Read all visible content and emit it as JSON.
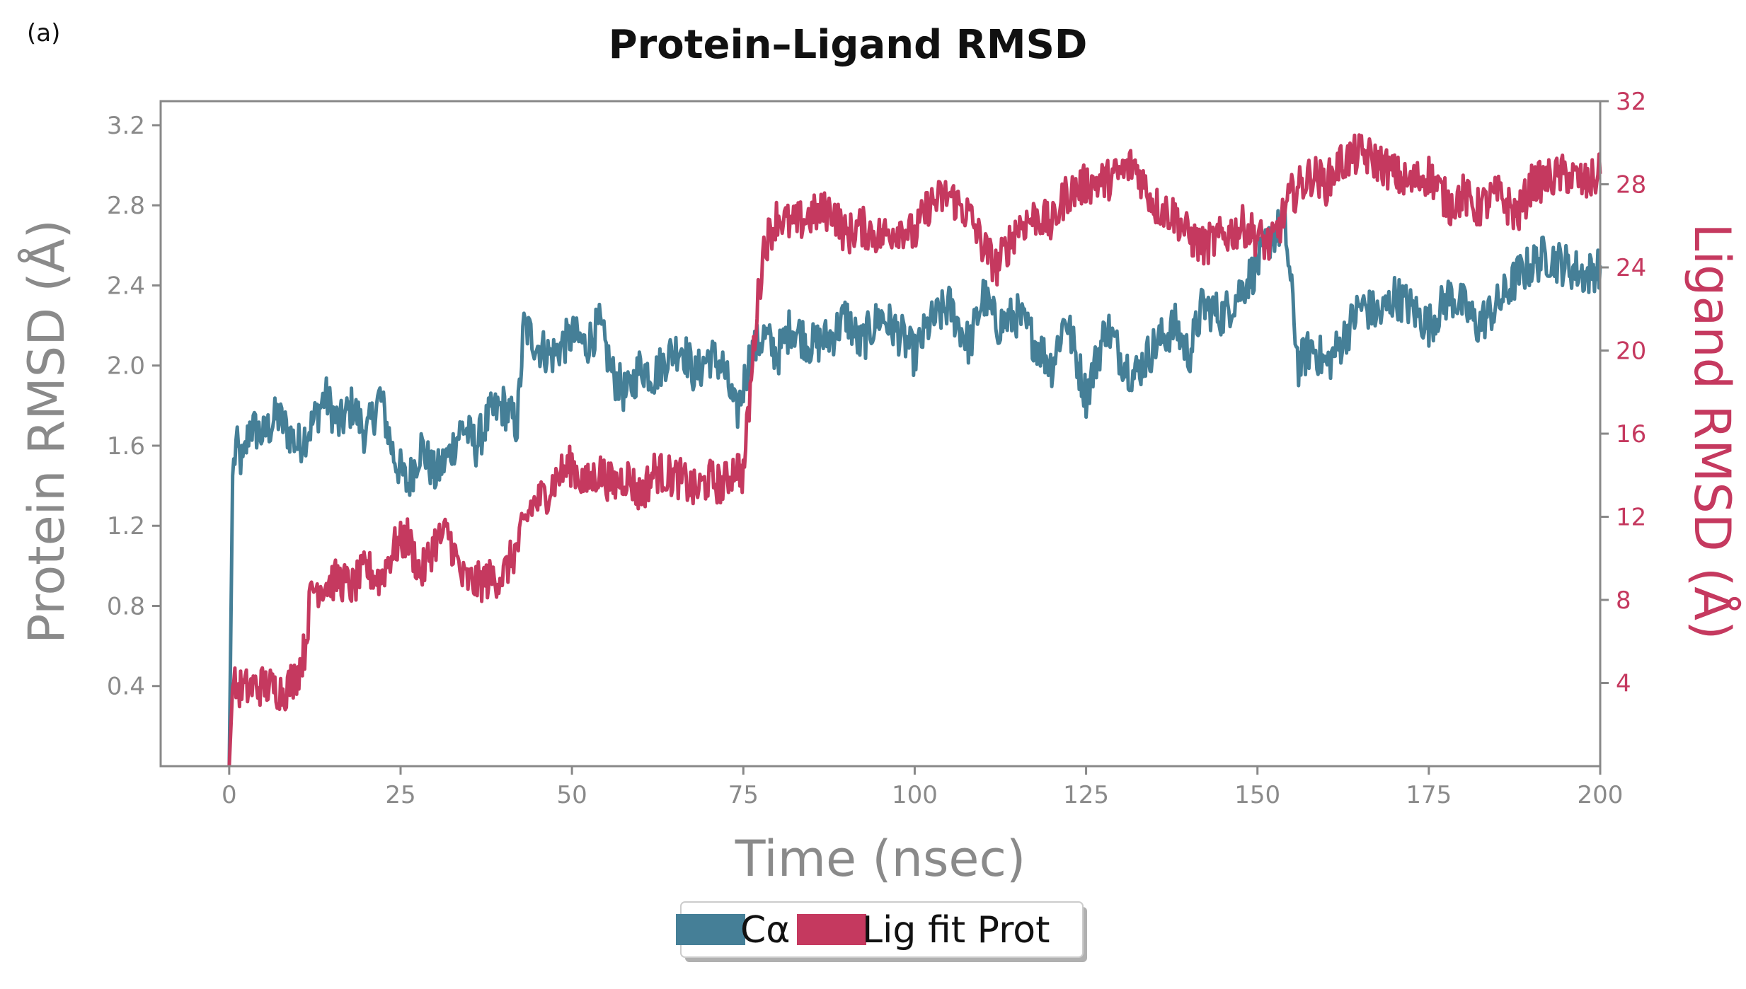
{
  "panel_label": "(a)",
  "chart_data": {
    "type": "line",
    "title": "Protein–Ligand RMSD",
    "xlabel": "Time (nsec)",
    "ylabel_left": "Protein RMSD (Å)",
    "ylabel_right": "Ligand RMSD (Å)",
    "xlim": [
      -10,
      200
    ],
    "ylim_left": [
      0.0,
      3.32
    ],
    "ylim_right": [
      0.0,
      32.0
    ],
    "x_ticks": [
      0,
      25,
      50,
      75,
      100,
      125,
      150,
      175,
      200
    ],
    "y_ticks_left": [
      "3.2",
      "2.8",
      "2.4",
      "2.0",
      "1.6",
      "1.2",
      "0.8",
      "0.4"
    ],
    "y_tick_values_left": [
      3.2,
      2.8,
      2.4,
      2.0,
      1.6,
      1.2,
      0.8,
      0.4
    ],
    "y_ticks_right": [
      "32",
      "28",
      "24",
      "20",
      "16",
      "12",
      "8",
      "4"
    ],
    "y_tick_values_right": [
      32,
      28,
      24,
      20,
      16,
      12,
      8,
      4
    ],
    "grid": false,
    "legend_placement": "bottom-center",
    "series": [
      {
        "name": "Cα",
        "axis": "left",
        "color": "#457f97",
        "x": [
          0,
          0.5,
          1,
          2,
          3,
          5,
          7,
          10,
          12,
          14,
          16,
          18,
          20,
          22,
          24,
          26,
          28,
          30,
          32,
          34,
          36,
          38,
          40,
          42,
          43,
          45,
          47,
          50,
          52,
          54,
          56,
          58,
          60,
          62,
          64,
          66,
          68,
          70,
          72,
          74,
          76,
          78,
          80,
          82,
          85,
          88,
          90,
          92,
          95,
          98,
          100,
          102,
          105,
          108,
          110,
          112,
          115,
          118,
          120,
          122,
          125,
          128,
          130,
          132,
          135,
          138,
          140,
          142,
          145,
          148,
          150,
          152,
          154,
          156,
          158,
          160,
          162,
          165,
          168,
          170,
          172,
          175,
          178,
          180,
          182,
          185,
          188,
          190,
          192,
          195,
          198,
          200
        ],
        "values": [
          0.0,
          1.45,
          1.6,
          1.5,
          1.7,
          1.65,
          1.75,
          1.6,
          1.7,
          1.85,
          1.7,
          1.8,
          1.65,
          1.85,
          1.55,
          1.4,
          1.6,
          1.45,
          1.55,
          1.7,
          1.6,
          1.75,
          1.8,
          1.7,
          2.2,
          2.1,
          2.05,
          2.15,
          2.1,
          2.2,
          1.95,
          1.85,
          2.0,
          1.95,
          2.05,
          2.1,
          1.95,
          2.05,
          2.0,
          1.75,
          2.05,
          2.15,
          2.05,
          2.2,
          2.1,
          2.15,
          2.25,
          2.1,
          2.25,
          2.15,
          2.05,
          2.2,
          2.3,
          2.1,
          2.35,
          2.2,
          2.25,
          2.1,
          2.0,
          2.25,
          1.85,
          2.2,
          2.05,
          1.95,
          2.1,
          2.2,
          2.05,
          2.3,
          2.25,
          2.4,
          2.5,
          2.65,
          2.7,
          2.0,
          2.1,
          2.0,
          2.1,
          2.3,
          2.25,
          2.35,
          2.3,
          2.2,
          2.35,
          2.3,
          2.2,
          2.3,
          2.45,
          2.5,
          2.55,
          2.5,
          2.45,
          2.5
        ]
      },
      {
        "name": "Lig fit Prot",
        "axis": "right",
        "color": "#c5395f",
        "x": [
          0,
          0.5,
          2,
          5,
          8,
          10,
          11,
          12,
          14,
          16,
          18,
          20,
          22,
          24,
          26,
          28,
          30,
          32,
          34,
          36,
          38,
          40,
          42,
          44,
          46,
          48,
          50,
          52,
          54,
          56,
          58,
          60,
          62,
          64,
          66,
          68,
          70,
          72,
          74,
          75,
          76,
          77,
          78,
          80,
          82,
          85,
          88,
          90,
          92,
          95,
          98,
          100,
          102,
          105,
          108,
          110,
          112,
          115,
          118,
          120,
          122,
          125,
          128,
          130,
          132,
          135,
          138,
          140,
          142,
          145,
          148,
          150,
          152,
          155,
          158,
          160,
          162,
          165,
          168,
          170,
          172,
          175,
          178,
          180,
          182,
          185,
          188,
          190,
          192,
          195,
          198,
          200
        ],
        "values": [
          0.0,
          3.8,
          3.7,
          3.9,
          3.6,
          4.5,
          5.6,
          8.5,
          8.8,
          9.0,
          8.6,
          9.5,
          9.0,
          10.5,
          11.0,
          9.2,
          10.8,
          11.2,
          9.0,
          8.8,
          9.0,
          9.2,
          10.5,
          12.5,
          13.0,
          14.0,
          14.5,
          13.5,
          14.2,
          13.5,
          14.0,
          13.0,
          14.2,
          14.0,
          13.8,
          13.2,
          13.8,
          13.5,
          14.5,
          14.0,
          18.0,
          22.0,
          25.0,
          26.5,
          26.0,
          26.5,
          26.8,
          25.5,
          26.0,
          25.5,
          26.0,
          25.5,
          27.0,
          27.5,
          26.5,
          25.0,
          24.0,
          26.0,
          26.5,
          26.0,
          27.5,
          28.0,
          28.2,
          28.5,
          29.0,
          27.0,
          26.5,
          25.5,
          25.0,
          25.5,
          26.0,
          25.5,
          25.0,
          27.5,
          28.5,
          28.0,
          29.0,
          29.5,
          29.0,
          28.5,
          28.0,
          28.5,
          27.0,
          27.5,
          26.8,
          27.5,
          26.5,
          28.0,
          28.2,
          28.5,
          28.0,
          28.5
        ]
      }
    ]
  }
}
